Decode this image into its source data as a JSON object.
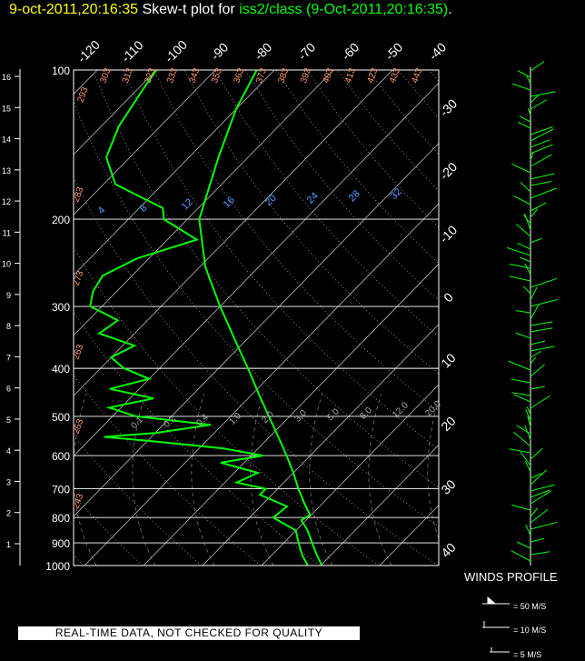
{
  "title": {
    "time": "9-oct-2011,20:16:35",
    "label": "Skew-t plot for",
    "source": "iss2/class (9-Oct-2011,20:16:35)",
    "period": "."
  },
  "quality_banner": "REAL-TIME DATA, NOT CHECKED FOR QUALITY",
  "winds": {
    "title": "WINDS PROFILE",
    "legend": [
      "= 50 M/S",
      "= 10 M/S",
      "= 5 M/S"
    ]
  },
  "colors": {
    "temp": "#00ff00",
    "dewpoint": "#00ff00",
    "grid": "#ffffff",
    "title_time": "#ffff00"
  },
  "chart_data": {
    "type": "line",
    "pressure_levels": [
      "100",
      "200",
      "300",
      "400",
      "500",
      "600",
      "700",
      "800",
      "900",
      "1000"
    ],
    "height_ticks": [
      "1",
      "2",
      "3",
      "4",
      "5",
      "6",
      "7",
      "8",
      "9",
      "10",
      "11",
      "12",
      "13",
      "14",
      "15",
      "16"
    ],
    "temperature_top_labels": [
      "-120",
      "-110",
      "-100",
      "-90",
      "-80",
      "-70",
      "-60",
      "-50",
      "-40"
    ],
    "temperature_right_labels": [
      "-30",
      "-20",
      "-10",
      "0",
      "10",
      "20",
      "30",
      "40"
    ],
    "theta_labels": [
      "293",
      "303",
      "313",
      "323",
      "333",
      "343",
      "353",
      "363",
      "373",
      "383",
      "393",
      "403",
      "413",
      "423",
      "433",
      "443"
    ],
    "theta_left_labels": [
      "283",
      "273",
      "263",
      "253",
      "243"
    ],
    "mixing_ratio_labels": [
      "4",
      "8",
      "12",
      "16",
      "20",
      "24",
      "28",
      "32"
    ],
    "saturation_labels": [
      "0.1",
      "0.2",
      "0.4",
      "1.0",
      "2.0",
      "3.0",
      "5.0",
      "8.0",
      "12.0",
      "20.0"
    ],
    "series": [
      {
        "pressure": [
          1000,
          950,
          900,
          850,
          810,
          790,
          750,
          700,
          650,
          600,
          550,
          500,
          450,
          400,
          350,
          300,
          250,
          200,
          150,
          120,
          100
        ],
        "values": [
          20.2,
          17.5,
          14.8,
          12.0,
          9.2,
          9.8,
          7.0,
          3.5,
          0.0,
          -4.0,
          -8.5,
          -13.5,
          -19.0,
          -25.0,
          -32.0,
          -40.0,
          -49.0,
          -58.0,
          -65.0,
          -70.0,
          -73.0
        ]
      },
      {
        "pressure": [
          1000,
          950,
          900,
          850,
          800,
          760,
          720,
          700,
          680,
          650,
          620,
          600,
          580,
          560,
          550,
          540,
          520,
          500,
          480,
          460,
          440,
          420,
          400,
          380,
          360,
          340,
          320,
          300,
          280,
          260,
          240,
          220,
          200,
          190,
          170,
          150,
          130,
          110,
          100
        ],
        "values": [
          17.8,
          15.0,
          12.5,
          10.0,
          4.0,
          4.5,
          -2.0,
          -2.0,
          -8.0,
          -6.0,
          -14.0,
          -8.0,
          -16.0,
          -30.0,
          -38.0,
          -30.0,
          -22.0,
          -36.0,
          -42.0,
          -36.0,
          -45.0,
          -40.0,
          -46.0,
          -50.0,
          -48.0,
          -56.0,
          -55.0,
          -62.0,
          -64.0,
          -65.0,
          -62.0,
          -55.0,
          -64.0,
          -66.0,
          -78.0,
          -84.0,
          -87.0,
          -89.0,
          -90.0
        ]
      }
    ]
  }
}
